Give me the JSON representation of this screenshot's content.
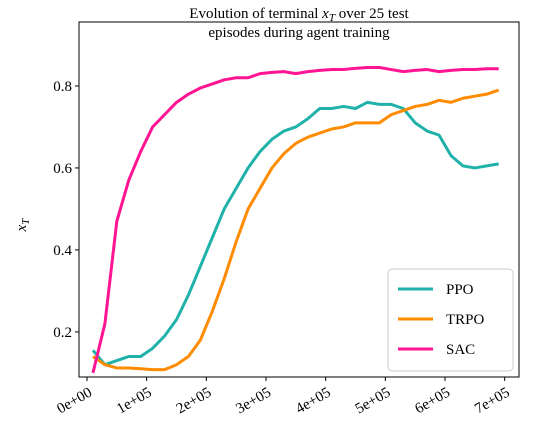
{
  "chart_data": {
    "type": "line",
    "title": {
      "before": "Evolution of terminal ",
      "var": "x",
      "sub": "T",
      "after": " over 25 test",
      "line2": "episodes during agent training"
    },
    "ylabel": {
      "var": "x",
      "sub": "T"
    },
    "x": [
      10000,
      30000,
      50000,
      70000,
      90000,
      110000,
      130000,
      150000,
      170000,
      190000,
      210000,
      230000,
      250000,
      270000,
      290000,
      310000,
      330000,
      350000,
      370000,
      390000,
      410000,
      430000,
      450000,
      470000,
      490000,
      510000,
      530000,
      550000,
      570000,
      590000,
      610000,
      630000,
      650000,
      670000,
      690000
    ],
    "series": [
      {
        "name": "PPO",
        "color": "#20b2aa",
        "values": [
          0.155,
          0.12,
          0.13,
          0.14,
          0.14,
          0.16,
          0.19,
          0.23,
          0.29,
          0.36,
          0.43,
          0.5,
          0.55,
          0.6,
          0.64,
          0.67,
          0.69,
          0.7,
          0.72,
          0.745,
          0.745,
          0.75,
          0.745,
          0.76,
          0.755,
          0.755,
          0.745,
          0.71,
          0.69,
          0.68,
          0.63,
          0.605,
          0.6,
          0.605,
          0.61
        ]
      },
      {
        "name": "TRPO",
        "color": "#ff8c00",
        "values": [
          0.14,
          0.12,
          0.112,
          0.112,
          0.11,
          0.108,
          0.108,
          0.12,
          0.14,
          0.18,
          0.25,
          0.33,
          0.42,
          0.5,
          0.55,
          0.6,
          0.635,
          0.66,
          0.675,
          0.685,
          0.695,
          0.7,
          0.71,
          0.71,
          0.71,
          0.73,
          0.74,
          0.75,
          0.755,
          0.765,
          0.76,
          0.77,
          0.775,
          0.78,
          0.79
        ]
      },
      {
        "name": "SAC",
        "color": "#ff1493",
        "values": [
          0.1,
          0.22,
          0.47,
          0.57,
          0.64,
          0.7,
          0.73,
          0.76,
          0.78,
          0.795,
          0.805,
          0.815,
          0.82,
          0.82,
          0.83,
          0.833,
          0.835,
          0.83,
          0.835,
          0.838,
          0.84,
          0.84,
          0.843,
          0.845,
          0.845,
          0.84,
          0.835,
          0.838,
          0.84,
          0.835,
          0.838,
          0.84,
          0.84,
          0.842,
          0.842
        ]
      }
    ],
    "xlim": [
      -13400,
      724000
    ],
    "ylim": [
      0.09,
      0.956
    ],
    "xticks": [
      {
        "value": 0,
        "label": "0e+00"
      },
      {
        "value": 100000,
        "label": "1e+05"
      },
      {
        "value": 200000,
        "label": "2e+05"
      },
      {
        "value": 300000,
        "label": "3e+05"
      },
      {
        "value": 400000,
        "label": "4e+05"
      },
      {
        "value": 500000,
        "label": "5e+05"
      },
      {
        "value": 600000,
        "label": "6e+05"
      },
      {
        "value": 700000,
        "label": "7e+05"
      }
    ],
    "yticks": [
      0.2,
      0.4,
      0.6,
      0.8
    ],
    "legend": "lower right",
    "grid": false
  }
}
